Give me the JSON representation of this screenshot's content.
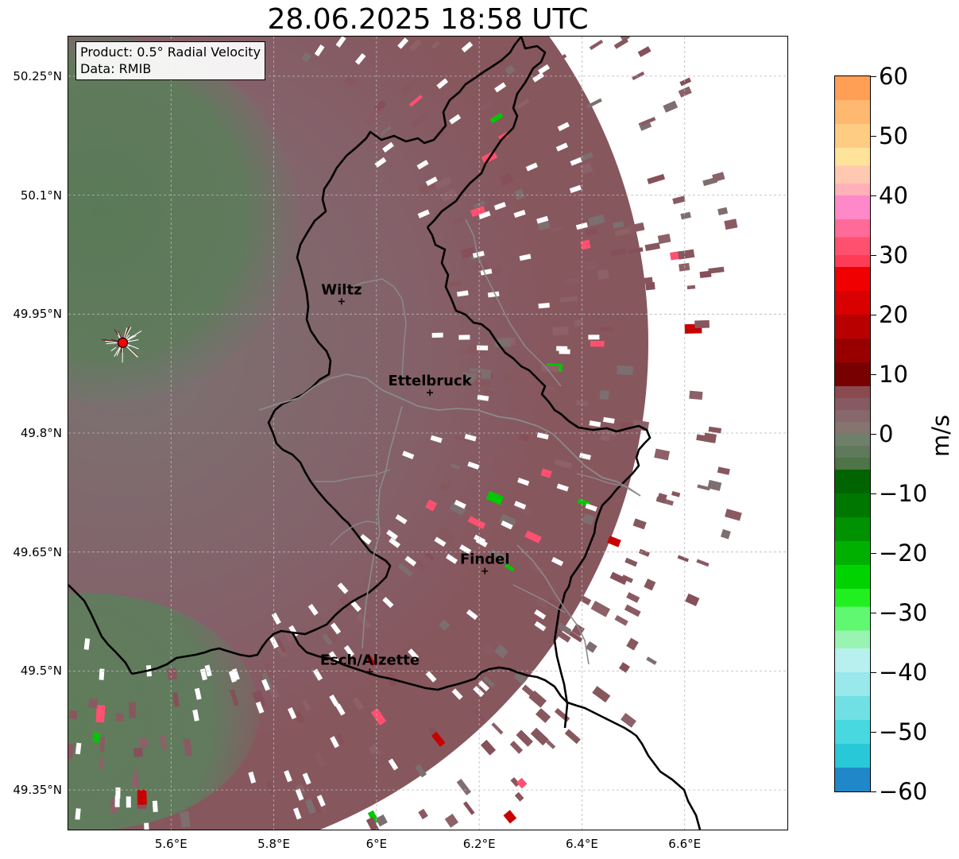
{
  "title": "28.06.2025 18:58 UTC",
  "info": {
    "product": "Product: 0.5° Radial Velocity",
    "source": "Data: RMIB"
  },
  "map": {
    "extent": {
      "lon_min": 5.4,
      "lon_max": 6.8,
      "lat_min": 49.3,
      "lat_max": 50.3
    },
    "lat_ticks": [
      {
        "value": 50.25,
        "label": "50.25°N"
      },
      {
        "value": 50.1,
        "label": "50.1°N"
      },
      {
        "value": 49.95,
        "label": "49.95°N"
      },
      {
        "value": 49.8,
        "label": "49.8°N"
      },
      {
        "value": 49.65,
        "label": "49.65°N"
      },
      {
        "value": 49.5,
        "label": "49.5°N"
      },
      {
        "value": 49.35,
        "label": "49.35°N"
      }
    ],
    "lon_ticks": [
      {
        "value": 5.6,
        "label": "5.6°E"
      },
      {
        "value": 5.8,
        "label": "5.8°E"
      },
      {
        "value": 6.0,
        "label": "6°E"
      },
      {
        "value": 6.2,
        "label": "6.2°E"
      },
      {
        "value": 6.4,
        "label": "6.4°E"
      },
      {
        "value": 6.6,
        "label": "6.6°E"
      }
    ],
    "radar_site": {
      "lon": 5.506,
      "lat": 49.914,
      "color": "#ff0000"
    },
    "cities": [
      {
        "name": "Wiltz",
        "lon": 5.932,
        "lat": 49.966
      },
      {
        "name": "Ettelbruck",
        "lon": 6.104,
        "lat": 49.851
      },
      {
        "name": "Findel",
        "lon": 6.211,
        "lat": 49.626
      },
      {
        "name": "Esch/Alzette",
        "lon": 5.987,
        "lat": 49.499
      }
    ],
    "colors": {
      "reddish_gray": "#87575e",
      "gray": "#7d7474",
      "green_gray": "#5f7a5b",
      "border": "#000000",
      "river": "#808080"
    }
  },
  "colorbar": {
    "unit": "m/s",
    "min": -60,
    "max": 60,
    "ticks": [
      {
        "value": 60,
        "label": "60"
      },
      {
        "value": 50,
        "label": "50"
      },
      {
        "value": 40,
        "label": "40"
      },
      {
        "value": 30,
        "label": "30"
      },
      {
        "value": 20,
        "label": "20"
      },
      {
        "value": 10,
        "label": "10"
      },
      {
        "value": 0,
        "label": "0"
      },
      {
        "value": -10,
        "label": "−10"
      },
      {
        "value": -20,
        "label": "−20"
      },
      {
        "value": -30,
        "label": "−30"
      },
      {
        "value": -40,
        "label": "−40"
      },
      {
        "value": -50,
        "label": "−50"
      },
      {
        "value": -60,
        "label": "−60"
      }
    ],
    "stops": [
      {
        "from": 56,
        "to": 60,
        "color": "#ff9f55"
      },
      {
        "from": 52,
        "to": 56,
        "color": "#ffb870"
      },
      {
        "from": 48,
        "to": 52,
        "color": "#ffcc84"
      },
      {
        "from": 45,
        "to": 48,
        "color": "#ffe39a"
      },
      {
        "from": 42,
        "to": 45,
        "color": "#ffc8b0"
      },
      {
        "from": 40,
        "to": 42,
        "color": "#ffb0b8"
      },
      {
        "from": 36,
        "to": 40,
        "color": "#ff88c8"
      },
      {
        "from": 33,
        "to": 36,
        "color": "#ff6a98"
      },
      {
        "from": 30,
        "to": 33,
        "color": "#ff5070"
      },
      {
        "from": 28,
        "to": 30,
        "color": "#ff3c56"
      },
      {
        "from": 24,
        "to": 28,
        "color": "#f00000"
      },
      {
        "from": 20,
        "to": 24,
        "color": "#d80000"
      },
      {
        "from": 16,
        "to": 20,
        "color": "#b80000"
      },
      {
        "from": 12,
        "to": 16,
        "color": "#980000"
      },
      {
        "from": 8,
        "to": 12,
        "color": "#780000"
      },
      {
        "from": 6,
        "to": 8,
        "color": "#8b4a50"
      },
      {
        "from": 4,
        "to": 6,
        "color": "#875a62"
      },
      {
        "from": 2,
        "to": 4,
        "color": "#87686d"
      },
      {
        "from": 0,
        "to": 2,
        "color": "#857470"
      },
      {
        "from": -2,
        "to": 0,
        "color": "#6e806a"
      },
      {
        "from": -4,
        "to": -2,
        "color": "#5f7a5b"
      },
      {
        "from": -6,
        "to": -4,
        "color": "#4e7448"
      },
      {
        "from": -10,
        "to": -6,
        "color": "#006400"
      },
      {
        "from": -14,
        "to": -10,
        "color": "#007800"
      },
      {
        "from": -18,
        "to": -14,
        "color": "#009200"
      },
      {
        "from": -22,
        "to": -18,
        "color": "#00b000"
      },
      {
        "from": -26,
        "to": -22,
        "color": "#00d400"
      },
      {
        "from": -29,
        "to": -26,
        "color": "#20f020"
      },
      {
        "from": -33,
        "to": -29,
        "color": "#60f870"
      },
      {
        "from": -36,
        "to": -33,
        "color": "#98f4b0"
      },
      {
        "from": -40,
        "to": -36,
        "color": "#b8f0f0"
      },
      {
        "from": -44,
        "to": -40,
        "color": "#98e8ec"
      },
      {
        "from": -48,
        "to": -44,
        "color": "#70e0e4"
      },
      {
        "from": -52,
        "to": -48,
        "color": "#48d8e0"
      },
      {
        "from": -56,
        "to": -52,
        "color": "#28c8d8"
      },
      {
        "from": -60,
        "to": -56,
        "color": "#2088c8"
      }
    ]
  }
}
